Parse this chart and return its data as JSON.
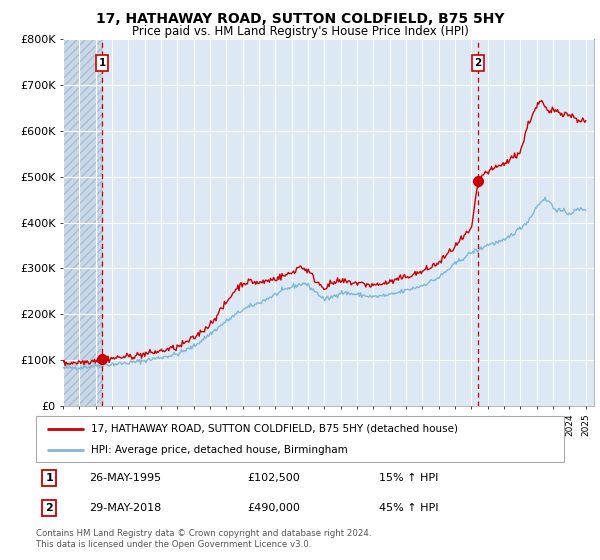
{
  "title": "17, HATHAWAY ROAD, SUTTON COLDFIELD, B75 5HY",
  "subtitle": "Price paid vs. HM Land Registry's House Price Index (HPI)",
  "title_fontsize": 10,
  "subtitle_fontsize": 8.5,
  "hpi_color": "#7fb8d8",
  "property_color": "#cc0000",
  "point1_date_num": 1995.4,
  "point1_value": 102500,
  "point2_date_num": 2018.41,
  "point2_value": 490000,
  "ylim": [
    0,
    800000
  ],
  "xlim": [
    1993.0,
    2025.5
  ],
  "yticks": [
    0,
    100000,
    200000,
    300000,
    400000,
    500000,
    600000,
    700000,
    800000
  ],
  "ytick_labels": [
    "£0",
    "£100K",
    "£200K",
    "£300K",
    "£400K",
    "£500K",
    "£600K",
    "£700K",
    "£800K"
  ],
  "legend_property": "17, HATHAWAY ROAD, SUTTON COLDFIELD, B75 5HY (detached house)",
  "legend_hpi": "HPI: Average price, detached house, Birmingham",
  "annotation1_date": "26-MAY-1995",
  "annotation1_price": "£102,500",
  "annotation1_hpi": "15% ↑ HPI",
  "annotation2_date": "29-MAY-2018",
  "annotation2_price": "£490,000",
  "annotation2_hpi": "45% ↑ HPI",
  "footer": "Contains HM Land Registry data © Crown copyright and database right 2024.\nThis data is licensed under the Open Government Licence v3.0.",
  "bg_color": "#dce9f5",
  "grid_color": "#ffffff",
  "hatch_color": "#b8cfe0"
}
